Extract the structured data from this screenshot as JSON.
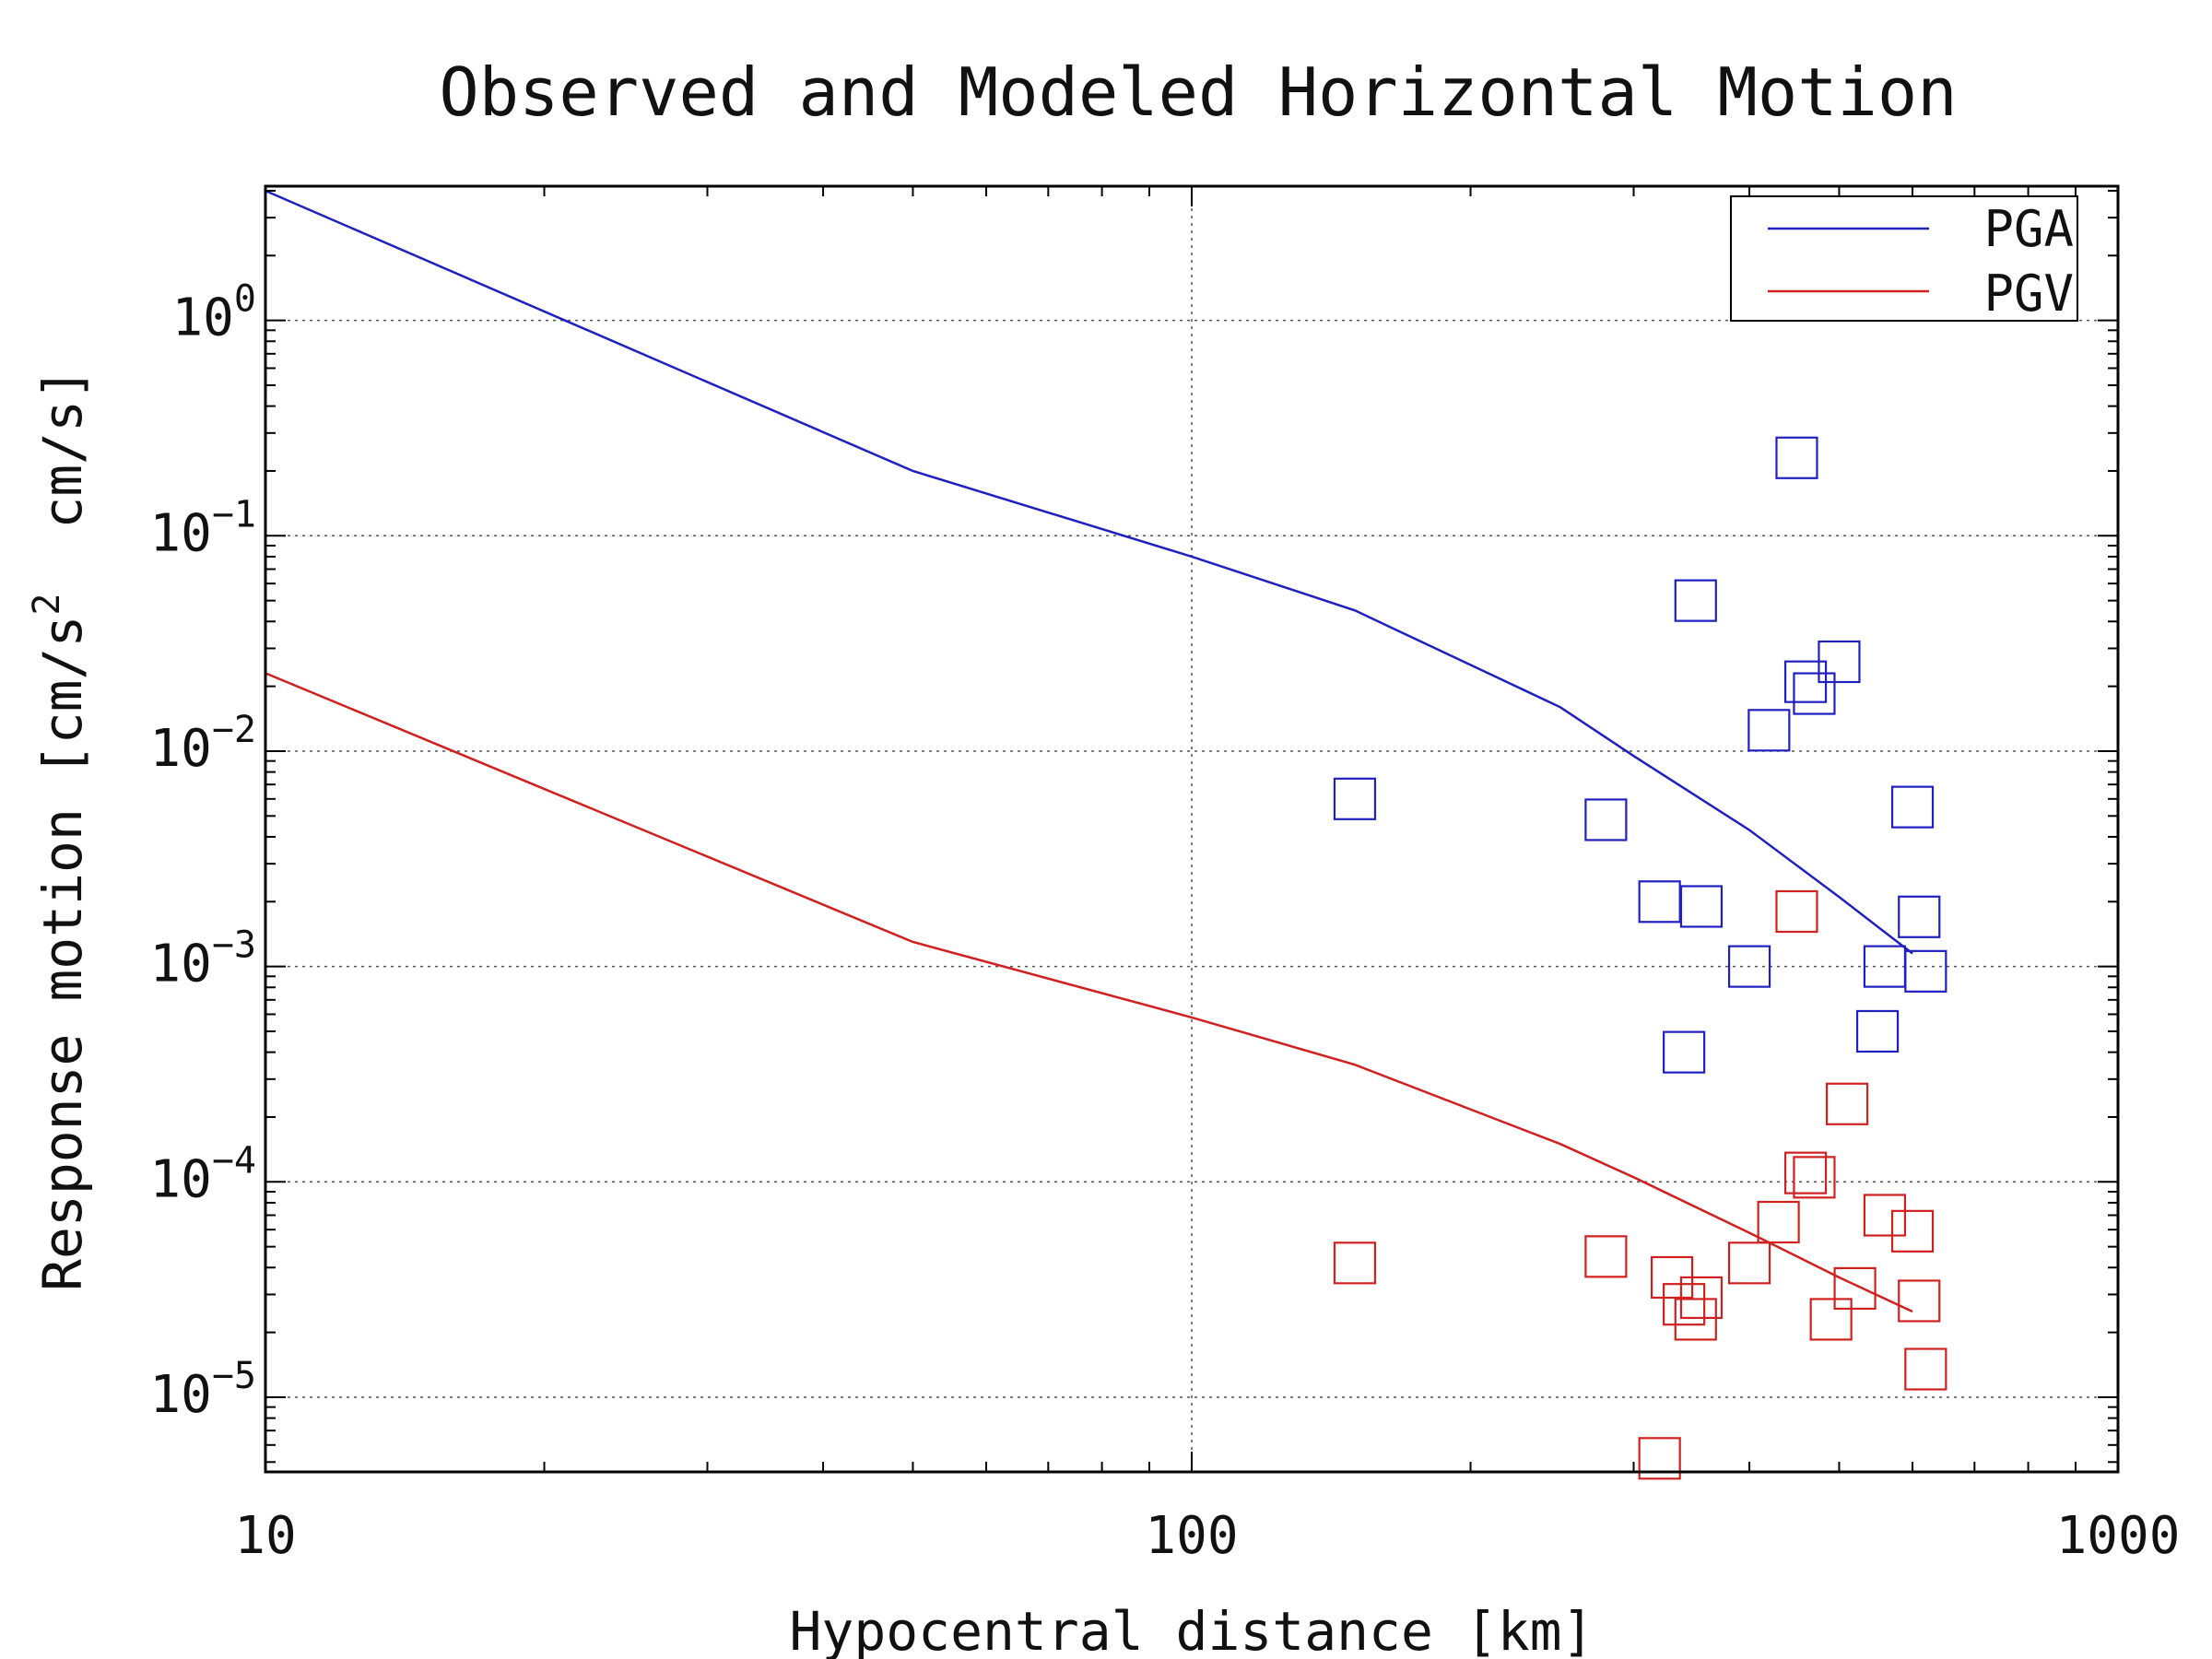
{
  "chart_data": {
    "type": "scatter",
    "title": "Observed and Modeled Horizontal Motion",
    "xlabel": "Hypocentral distance [km]",
    "ylabel": "Response motion [cm/s² cm/s]",
    "ylabel_parts": [
      "Response motion [cm/s",
      "2",
      "  cm/s]"
    ],
    "x_scale": "log",
    "y_scale": "log",
    "xlim": [
      10,
      1000
    ],
    "ylim": [
      4.5e-06,
      4.2
    ],
    "grid": true,
    "legend_position": "top-right",
    "x_ticks": [
      {
        "value": 10,
        "label": "10"
      },
      {
        "value": 100,
        "label": "100"
      },
      {
        "value": 1000,
        "label": "1000"
      }
    ],
    "y_ticks": [
      {
        "value": 1,
        "base": "10",
        "exp": "0"
      },
      {
        "value": 0.1,
        "base": "10",
        "exp": "−1"
      },
      {
        "value": 0.01,
        "base": "10",
        "exp": "−2"
      },
      {
        "value": 0.001,
        "base": "10",
        "exp": "−3"
      },
      {
        "value": 0.0001,
        "base": "10",
        "exp": "−4"
      },
      {
        "value": 1e-05,
        "base": "10",
        "exp": "−5"
      }
    ],
    "series": [
      {
        "name": "PGA",
        "color": "#2020c0",
        "model_line": {
          "x": [
            10,
            50,
            100,
            150,
            250,
            300,
            400,
            500,
            600
          ],
          "y": [
            4.0,
            0.2,
            0.08,
            0.045,
            0.016,
            0.0095,
            0.0043,
            0.0021,
            0.00115
          ]
        },
        "observed": {
          "x": [
            150,
            280,
            320,
            340,
            355,
            350,
            400,
            420,
            450,
            460,
            470,
            500,
            550,
            560,
            600,
            610,
            620
          ],
          "y": [
            0.006,
            0.0048,
            0.002,
            0.0004,
            0.0019,
            0.05,
            0.001,
            0.0125,
            0.23,
            0.021,
            0.0185,
            0.026,
            0.0005,
            0.001,
            0.0055,
            0.0017,
            0.00095
          ]
        }
      },
      {
        "name": "PGV",
        "color": "#d02020",
        "model_line": {
          "x": [
            10,
            50,
            100,
            150,
            250,
            300,
            400,
            500,
            600
          ],
          "y": [
            0.023,
            0.0013,
            0.00058,
            0.00035,
            0.00015,
            0.000105,
            5.8e-05,
            3.6e-05,
            2.5e-05
          ]
        },
        "observed": {
          "x": [
            150,
            280,
            320,
            330,
            340,
            350,
            355,
            400,
            430,
            450,
            460,
            470,
            490,
            510,
            520,
            560,
            600,
            610,
            620
          ],
          "y": [
            4.2e-05,
            4.5e-05,
            5.2e-06,
            3.6e-05,
            2.7e-05,
            2.3e-05,
            2.9e-05,
            4.2e-05,
            6.5e-05,
            0.0018,
            0.00011,
            0.000105,
            2.3e-05,
            0.00023,
            3.2e-05,
            7e-05,
            5.9e-05,
            2.8e-05,
            1.35e-05
          ]
        }
      }
    ]
  }
}
